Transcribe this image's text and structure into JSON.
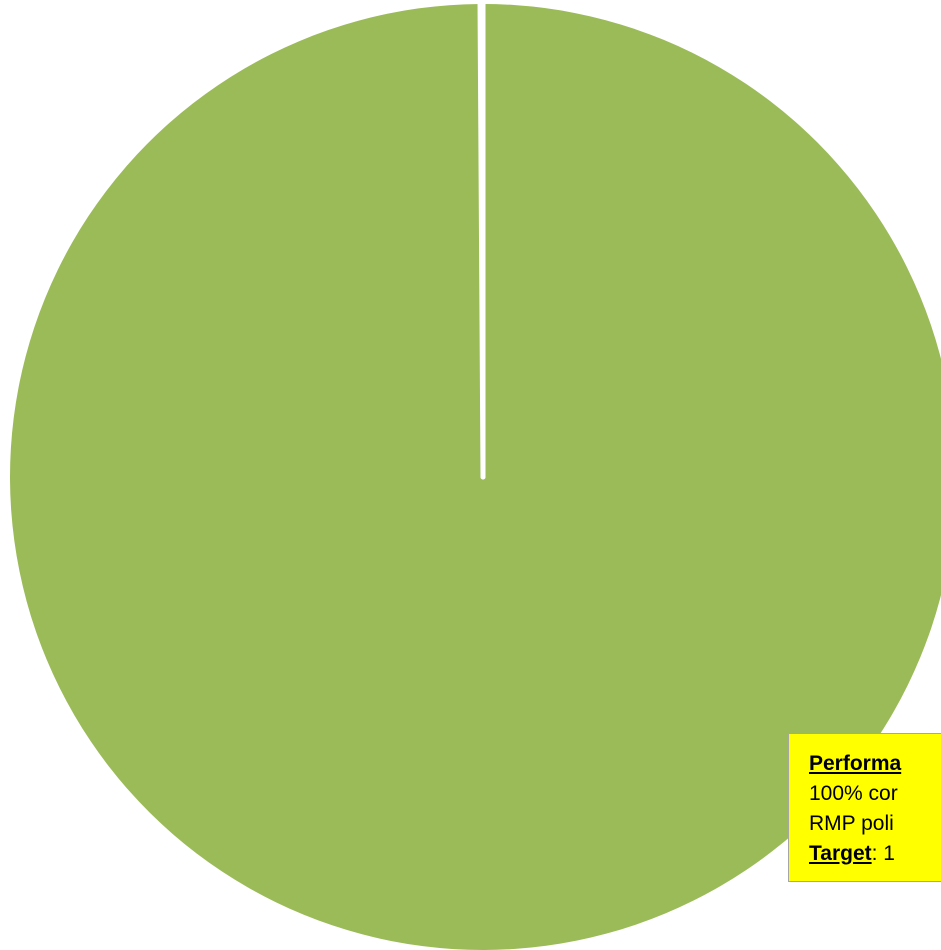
{
  "chart_data": {
    "type": "pie",
    "title": "",
    "slices": [
      {
        "label": "",
        "value": 99.9,
        "color": "#9bbb59"
      },
      {
        "label": "",
        "value": 0.1,
        "color": "#ffffff"
      }
    ],
    "start_angle": "top (12 o'clock)",
    "legend": "none"
  },
  "annotation": {
    "heading": "Performa",
    "line1": "100% cor",
    "line2": "RMP poli",
    "target_label": "Target",
    "target_rest": ": 1",
    "background": "#ffff00"
  }
}
